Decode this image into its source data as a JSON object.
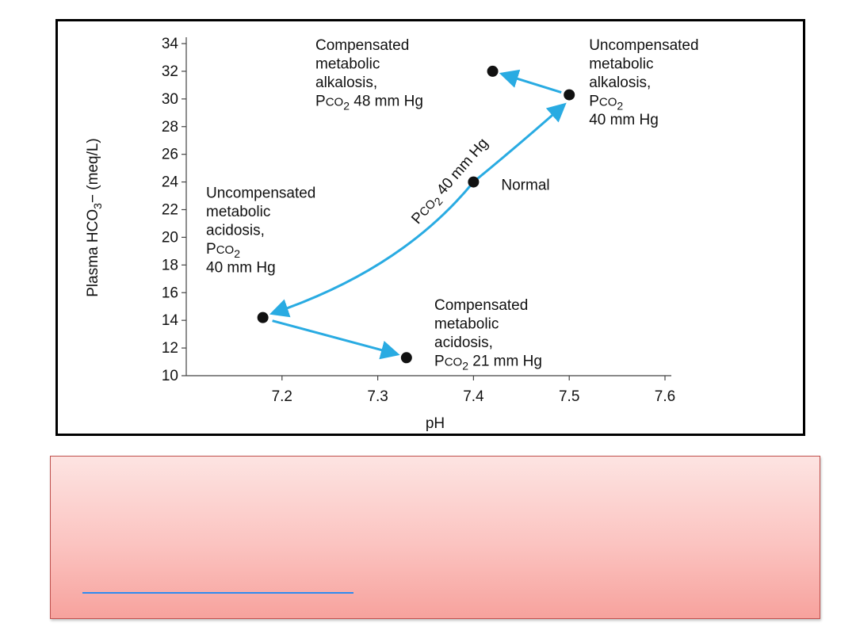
{
  "chart_data": {
    "type": "scatter",
    "title": "",
    "xlabel": "pH",
    "ylabel": "Plasma HCO3− (meq/L)",
    "xlim": [
      7.1,
      7.6
    ],
    "ylim": [
      10,
      34
    ],
    "xticks": [
      "7.2",
      "7.3",
      "7.4",
      "7.5",
      "7.6"
    ],
    "yticks": [
      "10",
      "12",
      "14",
      "16",
      "18",
      "20",
      "22",
      "24",
      "26",
      "28",
      "30",
      "32",
      "34"
    ],
    "grid": false,
    "points": [
      {
        "id": "normal",
        "x": 7.4,
        "y": 24,
        "label": [
          "Normal"
        ]
      },
      {
        "id": "uncomp-alkalosis",
        "x": 7.5,
        "y": 30.3,
        "label": [
          "Uncompensated",
          "metabolic",
          "alkalosis,",
          "PCO2",
          "40 mm Hg"
        ]
      },
      {
        "id": "comp-alkalosis",
        "x": 7.42,
        "y": 32,
        "label": [
          "Compensated",
          "metabolic",
          "alkalosis,",
          "PCO2 48 mm Hg"
        ]
      },
      {
        "id": "uncomp-acidosis",
        "x": 7.18,
        "y": 14.2,
        "label": [
          "Uncompensated",
          "metabolic",
          "acidosis,",
          "PCO2",
          "40 mm Hg"
        ]
      },
      {
        "id": "comp-acidosis",
        "x": 7.33,
        "y": 11.3,
        "label": [
          "Compensated",
          "metabolic",
          "acidosis,",
          "PCO2 21 mm Hg"
        ]
      }
    ],
    "curve_label": "PCO2 40 mm Hg",
    "arrow_color": "#29abe2",
    "point_color": "#111111"
  },
  "info_box": {
    "fill_top": "#fde4e2",
    "fill_bottom": "#f7a29d",
    "border_color": "#c0504d",
    "link_line_color": "#2e8bf0"
  }
}
